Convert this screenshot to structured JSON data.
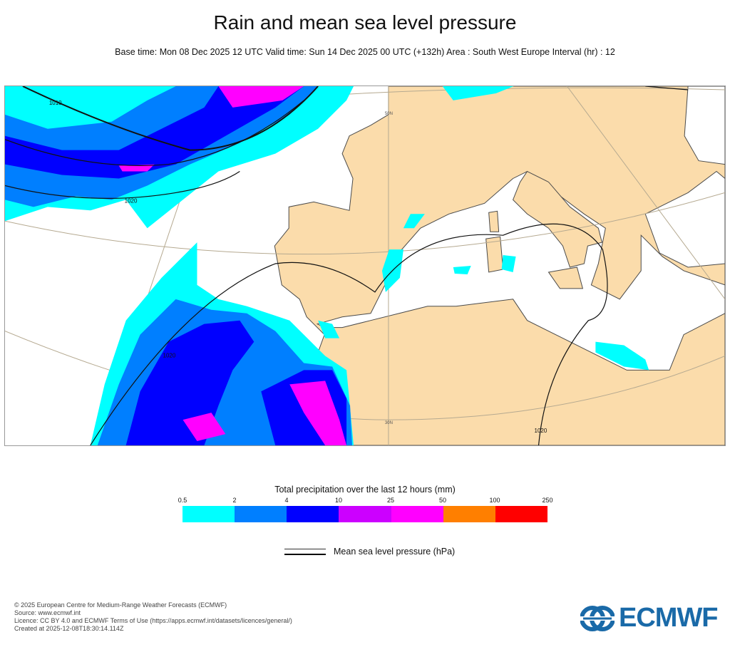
{
  "title": "Rain and mean sea level pressure",
  "subtitle": "Base time: Mon 08 Dec 2025 12 UTC Valid time: Sun 14 Dec 2025 00 UTC (+132h) Area : South West Europe Interval (hr) : 12",
  "map": {
    "isobar_labels": [
      "1010",
      "1020",
      "1020",
      "1020"
    ],
    "graticule_labels": [
      "50N",
      "30N"
    ],
    "colors": {
      "land": "#fbdcab",
      "sea": "#ffffff",
      "coast": "#4a4a4a",
      "isobar": "#111111",
      "graticule": "#b5a990"
    }
  },
  "legend": {
    "title": "Total precipitation over the last 12 hours (mm)",
    "ticks": [
      "0.5",
      "2",
      "4",
      "10",
      "25",
      "50",
      "100",
      "250"
    ],
    "colors": [
      "#00ffff",
      "#007fff",
      "#0000ff",
      "#cc00ff",
      "#ff00ff",
      "#ff7f00",
      "#ff0000"
    ],
    "msl_label": "Mean sea level pressure (hPa)"
  },
  "footer": {
    "lines": [
      "© 2025 European Centre for Medium-Range Weather Forecasts (ECMWF)",
      "Source: www.ecmwf.int",
      "Licence: CC BY 4.0 and ECMWF Terms of Use (https://apps.ecmwf.int/datasets/licences/general/)",
      "Created at 2025-12-08T18:30:14.114Z"
    ],
    "logo_text": "ECMWF"
  }
}
